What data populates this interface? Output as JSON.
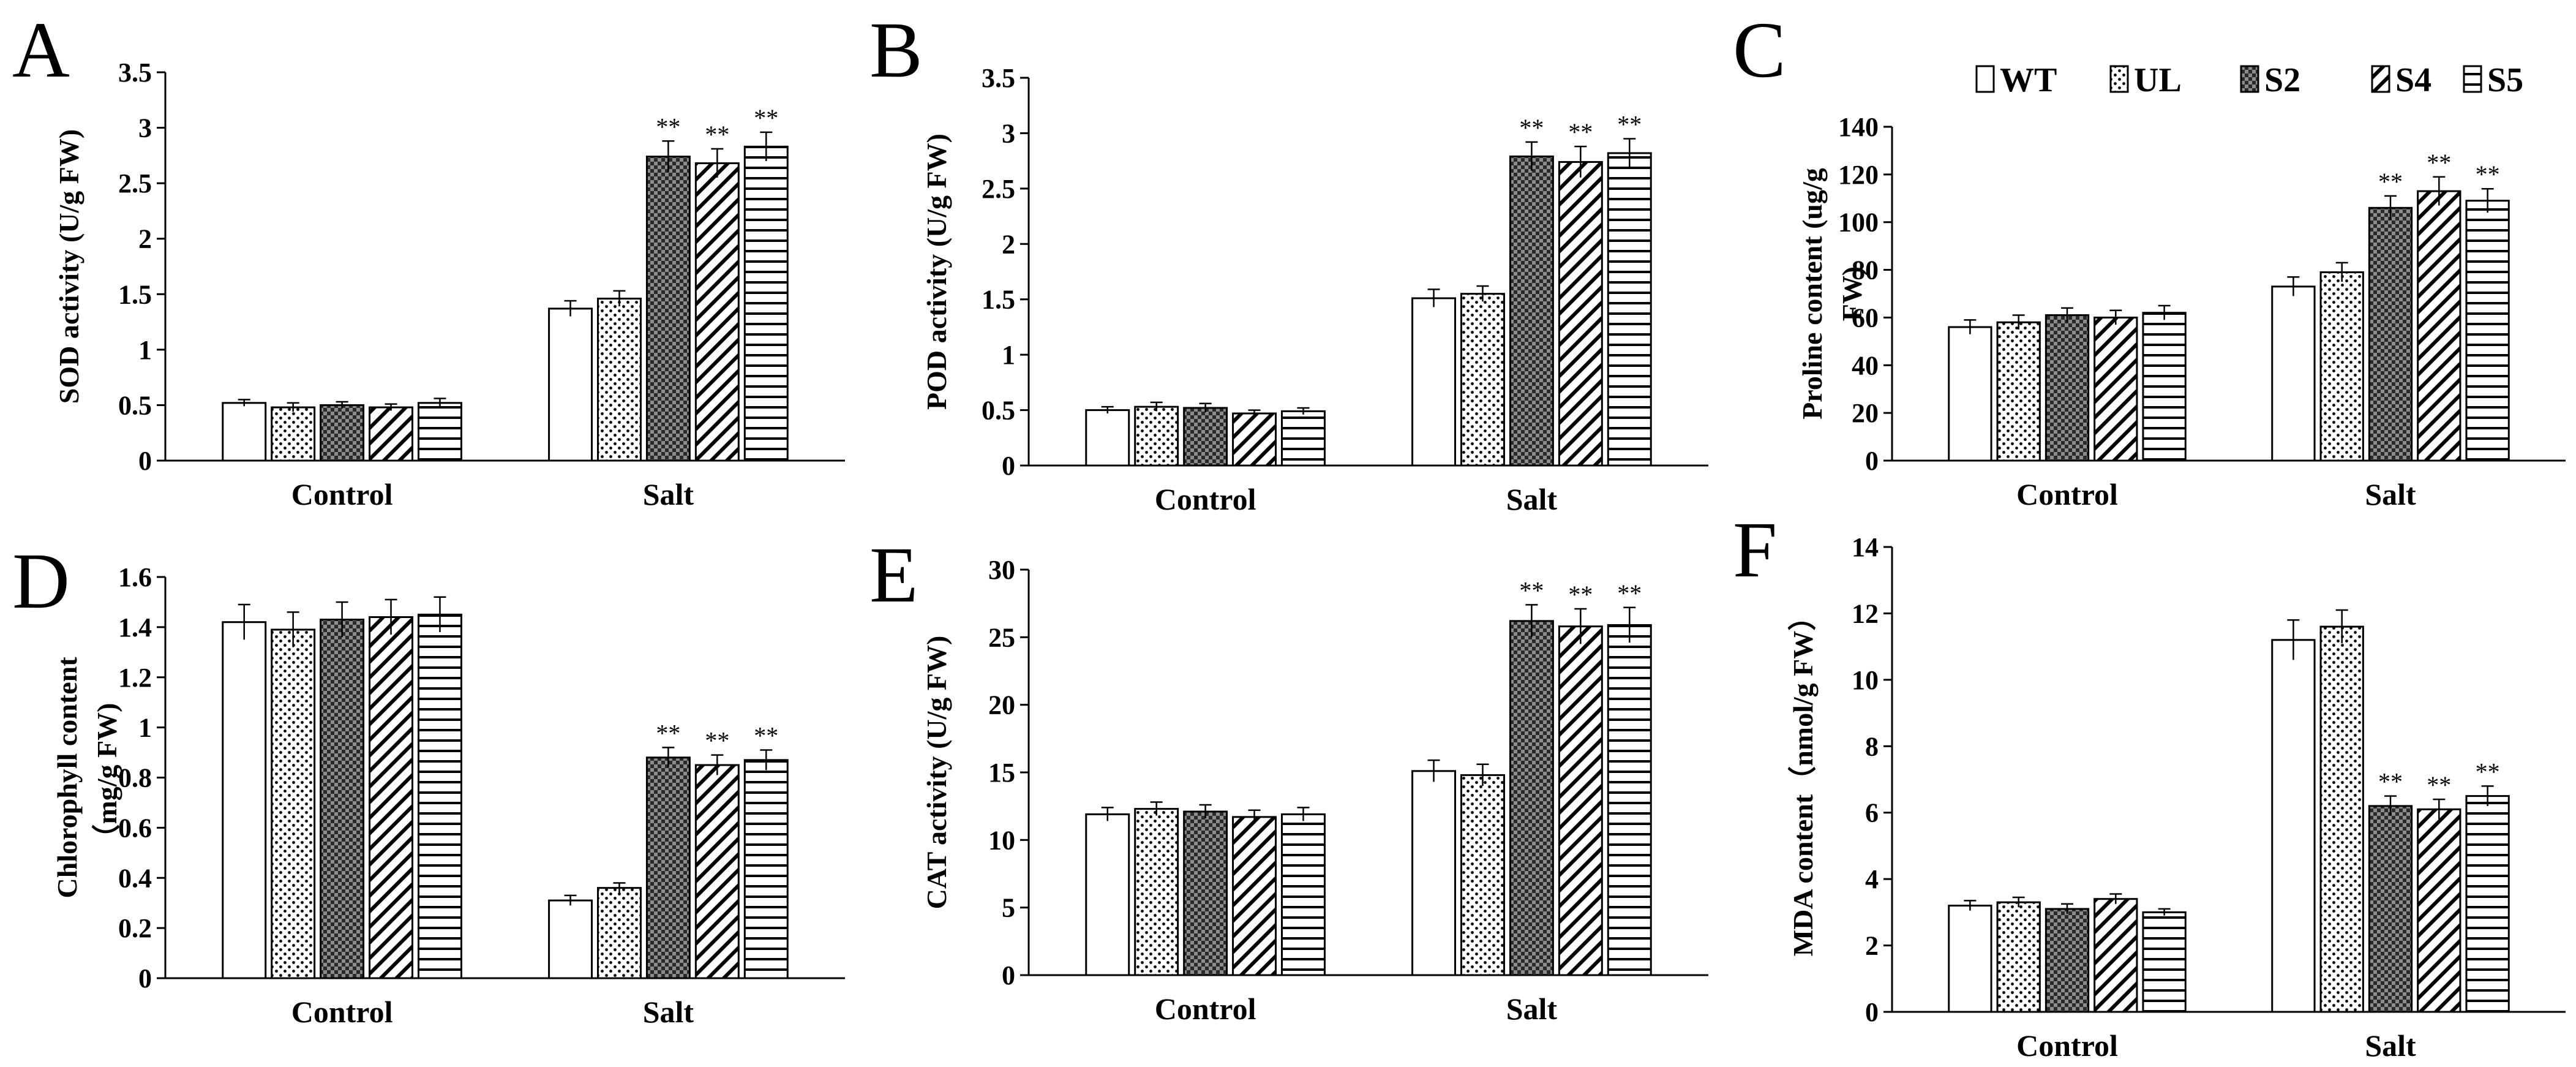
{
  "legend": {
    "items": [
      {
        "name": "WT",
        "pattern": "white"
      },
      {
        "name": "UL",
        "pattern": "dots"
      },
      {
        "name": "S2",
        "pattern": "checker"
      },
      {
        "name": "S4",
        "pattern": "diag"
      },
      {
        "name": "S5",
        "pattern": "hlines"
      }
    ]
  },
  "chart_data": [
    {
      "panel": "A",
      "type": "bar",
      "ylabel": "SOD activity (U/g FW)",
      "ylim": [
        0,
        3.5
      ],
      "yticks": [
        "0",
        "0.5",
        "1",
        "1.5",
        "2",
        "2.5",
        "3",
        "3.5"
      ],
      "categories": [
        "Control",
        "Salt"
      ],
      "series": [
        {
          "name": "WT",
          "values": [
            0.52,
            1.37
          ],
          "errors": [
            0.03,
            0.07
          ],
          "sig": [
            "",
            ""
          ]
        },
        {
          "name": "UL",
          "values": [
            0.48,
            1.46
          ],
          "errors": [
            0.04,
            0.07
          ],
          "sig": [
            "",
            ""
          ]
        },
        {
          "name": "S2",
          "values": [
            0.5,
            2.74
          ],
          "errors": [
            0.03,
            0.14
          ],
          "sig": [
            "",
            "**"
          ]
        },
        {
          "name": "S4",
          "values": [
            0.48,
            2.68
          ],
          "errors": [
            0.03,
            0.13
          ],
          "sig": [
            "",
            "**"
          ]
        },
        {
          "name": "S5",
          "values": [
            0.52,
            2.83
          ],
          "errors": [
            0.04,
            0.13
          ],
          "sig": [
            "",
            "**"
          ]
        }
      ]
    },
    {
      "panel": "B",
      "type": "bar",
      "ylabel": "POD activity (U/g FW)",
      "ylim": [
        0,
        3.5
      ],
      "yticks": [
        "0",
        "0.5",
        "1",
        "1.5",
        "2",
        "2.5",
        "3",
        "3.5"
      ],
      "categories": [
        "Control",
        "Salt"
      ],
      "series": [
        {
          "name": "WT",
          "values": [
            0.5,
            1.51
          ],
          "errors": [
            0.03,
            0.08
          ],
          "sig": [
            "",
            ""
          ]
        },
        {
          "name": "UL",
          "values": [
            0.53,
            1.55
          ],
          "errors": [
            0.04,
            0.07
          ],
          "sig": [
            "",
            ""
          ]
        },
        {
          "name": "S2",
          "values": [
            0.52,
            2.79
          ],
          "errors": [
            0.04,
            0.13
          ],
          "sig": [
            "",
            "**"
          ]
        },
        {
          "name": "S4",
          "values": [
            0.47,
            2.74
          ],
          "errors": [
            0.03,
            0.14
          ],
          "sig": [
            "",
            "**"
          ]
        },
        {
          "name": "S5",
          "values": [
            0.49,
            2.82
          ],
          "errors": [
            0.03,
            0.13
          ],
          "sig": [
            "",
            "**"
          ]
        }
      ]
    },
    {
      "panel": "C",
      "type": "bar",
      "ylabel_lines": [
        "Proline content  (ug/g",
        "FW)"
      ],
      "ylim": [
        0,
        140
      ],
      "yticks": [
        "0",
        "20",
        "40",
        "60",
        "80",
        "100",
        "120",
        "140"
      ],
      "categories": [
        "Control",
        "Salt"
      ],
      "series": [
        {
          "name": "WT",
          "values": [
            56,
            73
          ],
          "errors": [
            3,
            4
          ],
          "sig": [
            "",
            ""
          ]
        },
        {
          "name": "UL",
          "values": [
            58,
            79
          ],
          "errors": [
            3,
            4
          ],
          "sig": [
            "",
            ""
          ]
        },
        {
          "name": "S2",
          "values": [
            61,
            106
          ],
          "errors": [
            3,
            5
          ],
          "sig": [
            "",
            "**"
          ]
        },
        {
          "name": "S4",
          "values": [
            60,
            113
          ],
          "errors": [
            3,
            6
          ],
          "sig": [
            "",
            "**"
          ]
        },
        {
          "name": "S5",
          "values": [
            62,
            109
          ],
          "errors": [
            3,
            5
          ],
          "sig": [
            "",
            "**"
          ]
        }
      ]
    },
    {
      "panel": "D",
      "type": "bar",
      "ylabel_lines": [
        "Chlorophyll content",
        "（mg/g FW)"
      ],
      "ylim": [
        0,
        1.6
      ],
      "yticks": [
        "0",
        "0.2",
        "0.4",
        "0.6",
        "0.8",
        "1",
        "1.2",
        "1.4",
        "1.6"
      ],
      "categories": [
        "Control",
        "Salt"
      ],
      "series": [
        {
          "name": "WT",
          "values": [
            1.42,
            0.31
          ],
          "errors": [
            0.07,
            0.02
          ],
          "sig": [
            "",
            ""
          ]
        },
        {
          "name": "UL",
          "values": [
            1.39,
            0.36
          ],
          "errors": [
            0.07,
            0.02
          ],
          "sig": [
            "",
            ""
          ]
        },
        {
          "name": "S2",
          "values": [
            1.43,
            0.88
          ],
          "errors": [
            0.07,
            0.04
          ],
          "sig": [
            "",
            "**"
          ]
        },
        {
          "name": "S4",
          "values": [
            1.44,
            0.85
          ],
          "errors": [
            0.07,
            0.04
          ],
          "sig": [
            "",
            "**"
          ]
        },
        {
          "name": "S5",
          "values": [
            1.45,
            0.87
          ],
          "errors": [
            0.07,
            0.04
          ],
          "sig": [
            "",
            "**"
          ]
        }
      ]
    },
    {
      "panel": "E",
      "type": "bar",
      "ylabel": "CAT activity (U/g FW)",
      "ylim": [
        0,
        30
      ],
      "yticks": [
        "0",
        "5",
        "10",
        "15",
        "20",
        "25",
        "30"
      ],
      "categories": [
        "Control",
        "Salt"
      ],
      "series": [
        {
          "name": "WT",
          "values": [
            11.9,
            15.1
          ],
          "errors": [
            0.5,
            0.8
          ],
          "sig": [
            "",
            ""
          ]
        },
        {
          "name": "UL",
          "values": [
            12.3,
            14.8
          ],
          "errors": [
            0.5,
            0.8
          ],
          "sig": [
            "",
            ""
          ]
        },
        {
          "name": "S2",
          "values": [
            12.1,
            26.2
          ],
          "errors": [
            0.5,
            1.2
          ],
          "sig": [
            "",
            "**"
          ]
        },
        {
          "name": "S4",
          "values": [
            11.7,
            25.8
          ],
          "errors": [
            0.5,
            1.3
          ],
          "sig": [
            "",
            "**"
          ]
        },
        {
          "name": "S5",
          "values": [
            11.9,
            25.9
          ],
          "errors": [
            0.5,
            1.3
          ],
          "sig": [
            "",
            "**"
          ]
        }
      ]
    },
    {
      "panel": "F",
      "type": "bar",
      "ylabel": "MDA content（nmol/g FW）",
      "ylim": [
        0,
        14
      ],
      "yticks": [
        "0",
        "2",
        "4",
        "6",
        "8",
        "10",
        "12",
        "14"
      ],
      "categories": [
        "Control",
        "Salt"
      ],
      "series": [
        {
          "name": "WT",
          "values": [
            3.2,
            11.2
          ],
          "errors": [
            0.15,
            0.6
          ],
          "sig": [
            "",
            ""
          ]
        },
        {
          "name": "UL",
          "values": [
            3.3,
            11.6
          ],
          "errors": [
            0.15,
            0.5
          ],
          "sig": [
            "",
            ""
          ]
        },
        {
          "name": "S2",
          "values": [
            3.1,
            6.2
          ],
          "errors": [
            0.15,
            0.3
          ],
          "sig": [
            "",
            "**"
          ]
        },
        {
          "name": "S4",
          "values": [
            3.4,
            6.1
          ],
          "errors": [
            0.15,
            0.3
          ],
          "sig": [
            "",
            "**"
          ]
        },
        {
          "name": "S5",
          "values": [
            3.0,
            6.5
          ],
          "errors": [
            0.1,
            0.3
          ],
          "sig": [
            "",
            "**"
          ]
        }
      ]
    }
  ]
}
